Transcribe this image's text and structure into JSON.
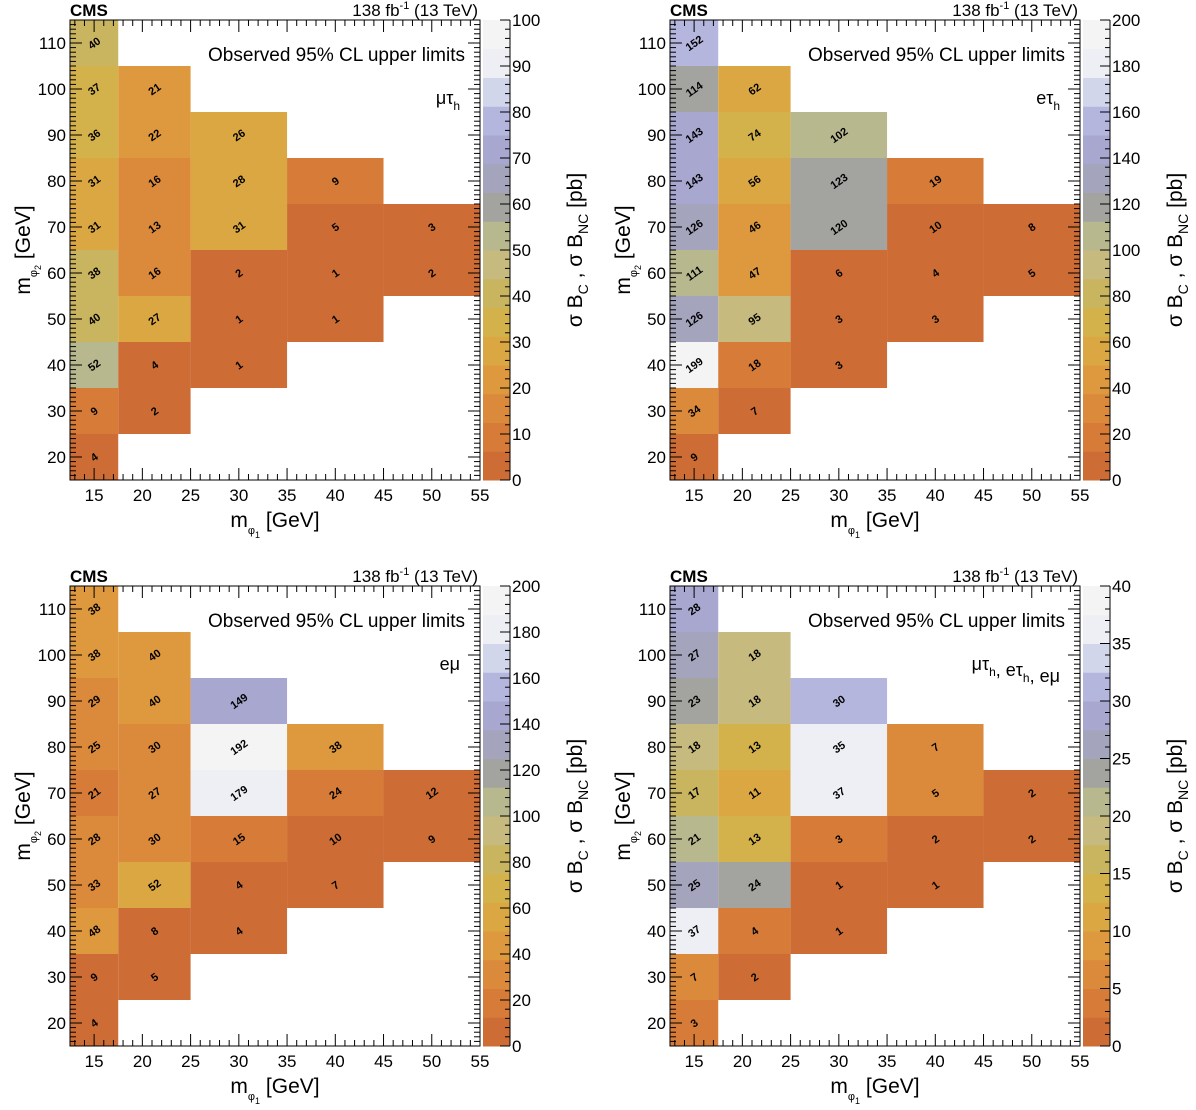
{
  "colors": {
    "background": "#ffffff",
    "palette": [
      "#cd6d35",
      "#d67b38",
      "#db8a3b",
      "#de983e",
      "#dba743",
      "#d3b24b",
      "#c9b460",
      "#c7ba7f",
      "#b8b88f",
      "#a3a39f",
      "#a4a4bc",
      "#a7a7cf",
      "#b4b6dd",
      "#d2d6eb",
      "#eeeff4",
      "#f4f4f4"
    ]
  },
  "chart_data": [
    {
      "type": "heatmap",
      "experiment": "CMS",
      "lumi": "138 fb",
      "lumi_sup": "-1",
      "energy": "(13 TeV)",
      "title": "Observed 95% CL upper limits",
      "channel_label": "μτ_h",
      "xlabel": "m_φ1 [GeV]",
      "ylabel": "m_φ2 [GeV]",
      "zlabel": "σ B_C , σ B_NC [pb]",
      "xlim": [
        12.5,
        55
      ],
      "ylim": [
        15,
        115
      ],
      "xticks": [
        15,
        20,
        25,
        30,
        35,
        40,
        45,
        50,
        55
      ],
      "yticks": [
        20,
        30,
        40,
        50,
        60,
        70,
        80,
        90,
        100,
        110
      ],
      "zlim": [
        0,
        100
      ],
      "zticks": [
        0,
        10,
        20,
        30,
        40,
        50,
        60,
        70,
        80,
        90,
        100
      ],
      "values": [
        {
          "x": 15,
          "y": 20,
          "z": 4
        },
        {
          "x": 15,
          "y": 30,
          "z": 9
        },
        {
          "x": 15,
          "y": 40,
          "z": 52
        },
        {
          "x": 15,
          "y": 50,
          "z": 40
        },
        {
          "x": 15,
          "y": 60,
          "z": 38
        },
        {
          "x": 15,
          "y": 70,
          "z": 31
        },
        {
          "x": 15,
          "y": 80,
          "z": 31
        },
        {
          "x": 15,
          "y": 90,
          "z": 36
        },
        {
          "x": 15,
          "y": 100,
          "z": 37
        },
        {
          "x": 15,
          "y": 110,
          "z": 40
        },
        {
          "x": 20,
          "y": 30,
          "z": 2
        },
        {
          "x": 20,
          "y": 40,
          "z": 4
        },
        {
          "x": 20,
          "y": 50,
          "z": 27
        },
        {
          "x": 20,
          "y": 60,
          "z": 16
        },
        {
          "x": 20,
          "y": 70,
          "z": 13
        },
        {
          "x": 20,
          "y": 80,
          "z": 16
        },
        {
          "x": 20,
          "y": 90,
          "z": 22
        },
        {
          "x": 20,
          "y": 100,
          "z": 21
        },
        {
          "x": 30,
          "y": 40,
          "z": 1
        },
        {
          "x": 30,
          "y": 50,
          "z": 1
        },
        {
          "x": 30,
          "y": 60,
          "z": 2
        },
        {
          "x": 30,
          "y": 70,
          "z": 31
        },
        {
          "x": 30,
          "y": 80,
          "z": 28
        },
        {
          "x": 30,
          "y": 90,
          "z": 26
        },
        {
          "x": 40,
          "y": 50,
          "z": 1
        },
        {
          "x": 40,
          "y": 60,
          "z": 1
        },
        {
          "x": 40,
          "y": 70,
          "z": 5
        },
        {
          "x": 40,
          "y": 80,
          "z": 9
        },
        {
          "x": 50,
          "y": 60,
          "z": 2
        },
        {
          "x": 50,
          "y": 70,
          "z": 3
        }
      ]
    },
    {
      "type": "heatmap",
      "experiment": "CMS",
      "lumi": "138 fb",
      "lumi_sup": "-1",
      "energy": "(13 TeV)",
      "title": "Observed 95% CL upper limits",
      "channel_label": "eτ_h",
      "xlabel": "m_φ1 [GeV]",
      "ylabel": "m_φ2 [GeV]",
      "zlabel": "σ B_C , σ B_NC [pb]",
      "xlim": [
        12.5,
        55
      ],
      "ylim": [
        15,
        115
      ],
      "xticks": [
        15,
        20,
        25,
        30,
        35,
        40,
        45,
        50,
        55
      ],
      "yticks": [
        20,
        30,
        40,
        50,
        60,
        70,
        80,
        90,
        100,
        110
      ],
      "zlim": [
        0,
        200
      ],
      "zticks": [
        0,
        20,
        40,
        60,
        80,
        100,
        120,
        140,
        160,
        180,
        200
      ],
      "values": [
        {
          "x": 15,
          "y": 20,
          "z": 9
        },
        {
          "x": 15,
          "y": 30,
          "z": 34
        },
        {
          "x": 15,
          "y": 40,
          "z": 199
        },
        {
          "x": 15,
          "y": 50,
          "z": 126
        },
        {
          "x": 15,
          "y": 60,
          "z": 111
        },
        {
          "x": 15,
          "y": 70,
          "z": 126
        },
        {
          "x": 15,
          "y": 80,
          "z": 143
        },
        {
          "x": 15,
          "y": 90,
          "z": 143
        },
        {
          "x": 15,
          "y": 100,
          "z": 114
        },
        {
          "x": 15,
          "y": 110,
          "z": 152
        },
        {
          "x": 20,
          "y": 30,
          "z": 7
        },
        {
          "x": 20,
          "y": 40,
          "z": 18
        },
        {
          "x": 20,
          "y": 50,
          "z": 95
        },
        {
          "x": 20,
          "y": 60,
          "z": 47
        },
        {
          "x": 20,
          "y": 70,
          "z": 46
        },
        {
          "x": 20,
          "y": 80,
          "z": 56
        },
        {
          "x": 20,
          "y": 90,
          "z": 74
        },
        {
          "x": 20,
          "y": 100,
          "z": 62
        },
        {
          "x": 30,
          "y": 40,
          "z": 3
        },
        {
          "x": 30,
          "y": 50,
          "z": 3
        },
        {
          "x": 30,
          "y": 60,
          "z": 6
        },
        {
          "x": 30,
          "y": 70,
          "z": 120
        },
        {
          "x": 30,
          "y": 80,
          "z": 123
        },
        {
          "x": 30,
          "y": 90,
          "z": 102
        },
        {
          "x": 40,
          "y": 50,
          "z": 3
        },
        {
          "x": 40,
          "y": 60,
          "z": 4
        },
        {
          "x": 40,
          "y": 70,
          "z": 10
        },
        {
          "x": 40,
          "y": 80,
          "z": 19
        },
        {
          "x": 50,
          "y": 60,
          "z": 5
        },
        {
          "x": 50,
          "y": 70,
          "z": 8
        }
      ]
    },
    {
      "type": "heatmap",
      "experiment": "CMS",
      "lumi": "138 fb",
      "lumi_sup": "-1",
      "energy": "(13 TeV)",
      "title": "Observed 95% CL upper limits",
      "channel_label": "eμ",
      "xlabel": "m_φ1 [GeV]",
      "ylabel": "m_φ2 [GeV]",
      "zlabel": "σ B_C , σ B_NC [pb]",
      "xlim": [
        12.5,
        55
      ],
      "ylim": [
        15,
        115
      ],
      "xticks": [
        15,
        20,
        25,
        30,
        35,
        40,
        45,
        50,
        55
      ],
      "yticks": [
        20,
        30,
        40,
        50,
        60,
        70,
        80,
        90,
        100,
        110
      ],
      "zlim": [
        0,
        200
      ],
      "zticks": [
        0,
        20,
        40,
        60,
        80,
        100,
        120,
        140,
        160,
        180,
        200
      ],
      "values": [
        {
          "x": 15,
          "y": 20,
          "z": 4
        },
        {
          "x": 15,
          "y": 30,
          "z": 9
        },
        {
          "x": 15,
          "y": 40,
          "z": 48
        },
        {
          "x": 15,
          "y": 50,
          "z": 33
        },
        {
          "x": 15,
          "y": 60,
          "z": 28
        },
        {
          "x": 15,
          "y": 70,
          "z": 21
        },
        {
          "x": 15,
          "y": 80,
          "z": 25
        },
        {
          "x": 15,
          "y": 90,
          "z": 29
        },
        {
          "x": 15,
          "y": 100,
          "z": 38
        },
        {
          "x": 15,
          "y": 110,
          "z": 38
        },
        {
          "x": 20,
          "y": 30,
          "z": 5
        },
        {
          "x": 20,
          "y": 40,
          "z": 8
        },
        {
          "x": 20,
          "y": 50,
          "z": 52
        },
        {
          "x": 20,
          "y": 60,
          "z": 30
        },
        {
          "x": 20,
          "y": 70,
          "z": 27
        },
        {
          "x": 20,
          "y": 80,
          "z": 30
        },
        {
          "x": 20,
          "y": 90,
          "z": 40
        },
        {
          "x": 20,
          "y": 100,
          "z": 40
        },
        {
          "x": 30,
          "y": 40,
          "z": 4
        },
        {
          "x": 30,
          "y": 50,
          "z": 4
        },
        {
          "x": 30,
          "y": 60,
          "z": 15
        },
        {
          "x": 30,
          "y": 70,
          "z": 179
        },
        {
          "x": 30,
          "y": 80,
          "z": 192
        },
        {
          "x": 30,
          "y": 90,
          "z": 149
        },
        {
          "x": 40,
          "y": 50,
          "z": 7
        },
        {
          "x": 40,
          "y": 60,
          "z": 10
        },
        {
          "x": 40,
          "y": 70,
          "z": 24
        },
        {
          "x": 40,
          "y": 80,
          "z": 38
        },
        {
          "x": 50,
          "y": 60,
          "z": 9
        },
        {
          "x": 50,
          "y": 70,
          "z": 12
        }
      ]
    },
    {
      "type": "heatmap",
      "experiment": "CMS",
      "lumi": "138 fb",
      "lumi_sup": "-1",
      "energy": "(13 TeV)",
      "title": "Observed 95% CL upper limits",
      "channel_label": "μτ_h, eτ_h, eμ",
      "xlabel": "m_φ1 [GeV]",
      "ylabel": "m_φ2 [GeV]",
      "zlabel": "σ B_C , σ B_NC [pb]",
      "xlim": [
        12.5,
        55
      ],
      "ylim": [
        15,
        115
      ],
      "xticks": [
        15,
        20,
        25,
        30,
        35,
        40,
        45,
        50,
        55
      ],
      "yticks": [
        20,
        30,
        40,
        50,
        60,
        70,
        80,
        90,
        100,
        110
      ],
      "zlim": [
        0,
        40
      ],
      "zticks": [
        0,
        5,
        10,
        15,
        20,
        25,
        30,
        35,
        40
      ],
      "values": [
        {
          "x": 15,
          "y": 20,
          "z": 3
        },
        {
          "x": 15,
          "y": 30,
          "z": 7
        },
        {
          "x": 15,
          "y": 40,
          "z": 37
        },
        {
          "x": 15,
          "y": 50,
          "z": 25
        },
        {
          "x": 15,
          "y": 60,
          "z": 21
        },
        {
          "x": 15,
          "y": 70,
          "z": 17
        },
        {
          "x": 15,
          "y": 80,
          "z": 18
        },
        {
          "x": 15,
          "y": 90,
          "z": 23
        },
        {
          "x": 15,
          "y": 100,
          "z": 27
        },
        {
          "x": 15,
          "y": 110,
          "z": 28
        },
        {
          "x": 20,
          "y": 30,
          "z": 2
        },
        {
          "x": 20,
          "y": 40,
          "z": 4
        },
        {
          "x": 20,
          "y": 50,
          "z": 24
        },
        {
          "x": 20,
          "y": 60,
          "z": 13
        },
        {
          "x": 20,
          "y": 70,
          "z": 11
        },
        {
          "x": 20,
          "y": 80,
          "z": 13
        },
        {
          "x": 20,
          "y": 90,
          "z": 18
        },
        {
          "x": 20,
          "y": 100,
          "z": 18
        },
        {
          "x": 30,
          "y": 40,
          "z": 1
        },
        {
          "x": 30,
          "y": 50,
          "z": 1
        },
        {
          "x": 30,
          "y": 60,
          "z": 3
        },
        {
          "x": 30,
          "y": 70,
          "z": 37
        },
        {
          "x": 30,
          "y": 80,
          "z": 35
        },
        {
          "x": 30,
          "y": 90,
          "z": 30
        },
        {
          "x": 40,
          "y": 50,
          "z": 1
        },
        {
          "x": 40,
          "y": 60,
          "z": 2
        },
        {
          "x": 40,
          "y": 70,
          "z": 5
        },
        {
          "x": 40,
          "y": 80,
          "z": 7
        },
        {
          "x": 50,
          "y": 60,
          "z": 2
        },
        {
          "x": 50,
          "y": 70,
          "z": 2
        }
      ]
    }
  ]
}
